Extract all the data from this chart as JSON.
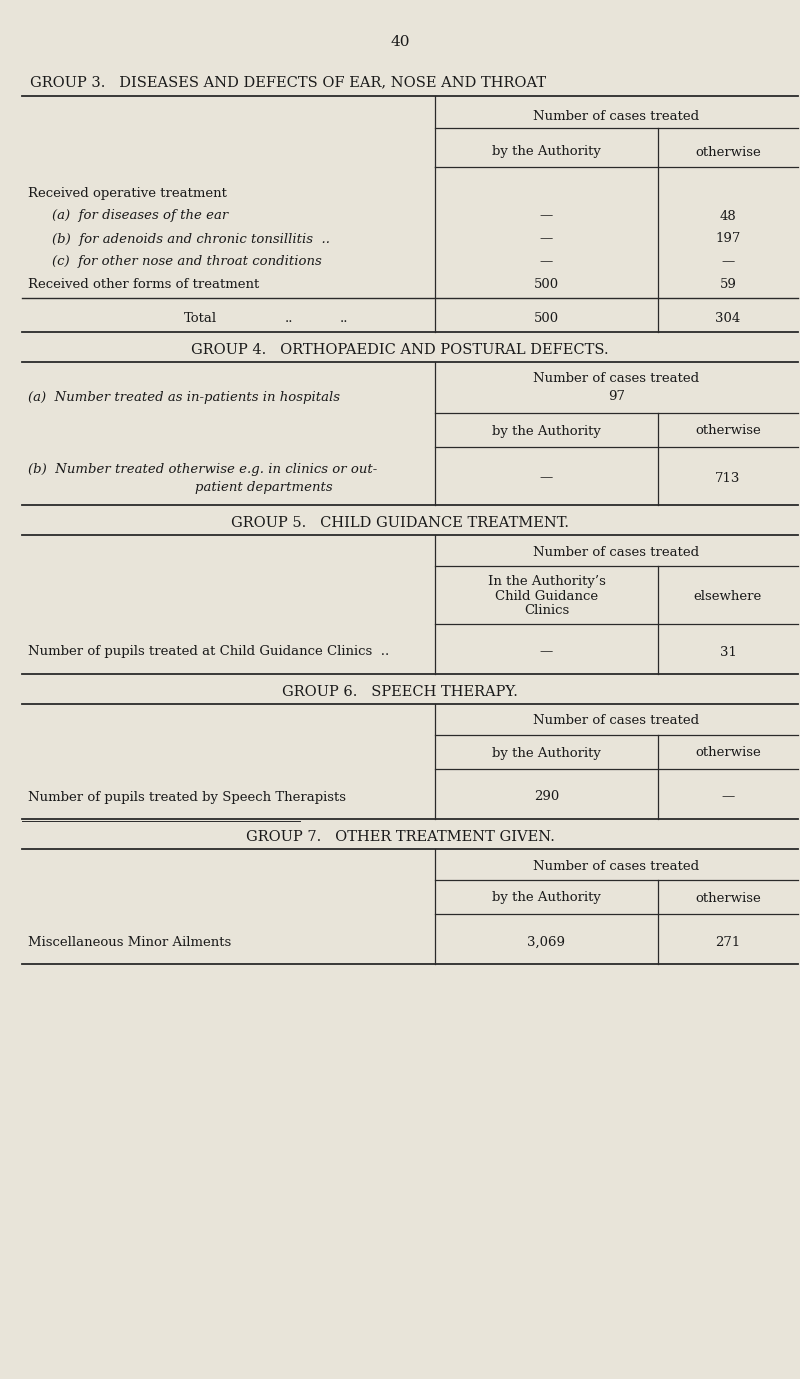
{
  "bg_color": "#e8e4d9",
  "text_color": "#1a1a1a",
  "page_number": "40",
  "group3_title": "GROUP 3.   DISEASES AND DEFECTS OF EAR, NOSE AND THROAT",
  "group3_header_span": "Number of cases treated",
  "group3_col1": "by the Authority",
  "group3_col2": "otherwise",
  "group3_rows": [
    {
      "label": "Received operative treatment",
      "indent": 0,
      "val1": "",
      "val2": ""
    },
    {
      "label": "(a)  for diseases of the ear",
      "indent": 1,
      "val1": "—",
      "val2": "48"
    },
    {
      "label": "(b)  for adenoids and chronic tonsillitis  ..",
      "indent": 1,
      "val1": "—",
      "val2": "197"
    },
    {
      "label": "(c)  for other nose and throat conditions",
      "indent": 1,
      "val1": "—",
      "val2": "—"
    },
    {
      "label": "Received other forms of treatment",
      "indent": 0,
      "val1": "500",
      "val2": "59"
    }
  ],
  "group3_total_label": "Total",
  "group3_total_dots": "..          ..",
  "group3_total_val1": "500",
  "group3_total_val2": "304",
  "group4_title": "GROUP 4.   ORTHOPAEDIC AND POSTURAL DEFECTS.",
  "group4_header_span": "Number of cases treated",
  "group4_row_a_label": "(a)  Number treated as in-patients in hospitals",
  "group4_row_a_val": "97",
  "group4_col1": "by the Authority",
  "group4_col2": "otherwise",
  "group4_row_b_label1": "(b)  Number treated otherwise e.g. in clinics or out-",
  "group4_row_b_label2": "patient departments",
  "group4_row_b_val1": "—",
  "group4_row_b_val2": "713",
  "group5_title": "GROUP 5.   CHILD GUIDANCE TREATMENT.",
  "group5_header_span": "Number of cases treated",
  "group5_col1_line1": "In the Authority’s",
  "group5_col1_line2": "Child Guidance",
  "group5_col1_line3": "Clinics",
  "group5_col2": "elsewhere",
  "group5_row_label": "Number of pupils treated at Child Guidance Clinics  ..",
  "group5_row_val1": "—",
  "group5_row_val2": "31",
  "group6_title": "GROUP 6.   SPEECH THERAPY.",
  "group6_header_span": "Number of cases treated",
  "group6_col1": "by the Authority",
  "group6_col2": "otherwise",
  "group6_row_label": "Number of pupils treated by Speech Therapists",
  "group6_row_val1": "290",
  "group6_row_val2": "—",
  "group7_title": "GROUP 7.   OTHER TREATMENT GIVEN.",
  "group7_header_span": "Number of cases treated",
  "group7_col1": "by the Authority",
  "group7_col2": "otherwise",
  "group7_row_label": "Miscellaneous Minor Ailments",
  "group7_row_val1": "3,069",
  "group7_row_val2": "271"
}
